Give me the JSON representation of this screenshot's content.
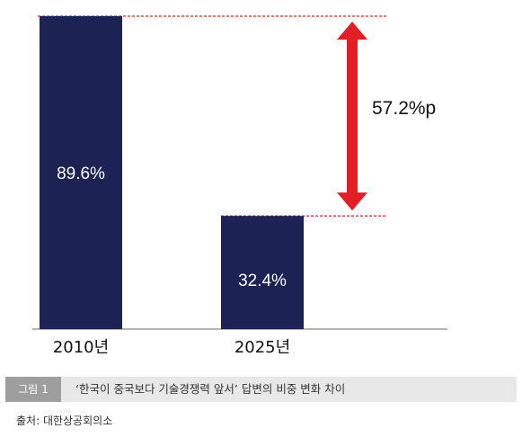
{
  "chart_data": {
    "type": "bar",
    "categories": [
      "2010년",
      "2025년"
    ],
    "values": [
      89.6,
      32.4
    ],
    "value_labels": [
      "89.6%",
      "32.4%"
    ],
    "difference_label": "57.2%p",
    "title": "",
    "xlabel": "",
    "ylabel": "",
    "ylim": [
      0,
      100
    ],
    "grid": false,
    "bar_color": "#1c2354",
    "annotation_color": "#e31e24"
  },
  "caption": {
    "label": "그림 1",
    "text": "‘한국이 중국보다 기술경쟁력 앞서’ 답변의 비중 변화 차이"
  },
  "source": "출처: 대한상공회의소"
}
